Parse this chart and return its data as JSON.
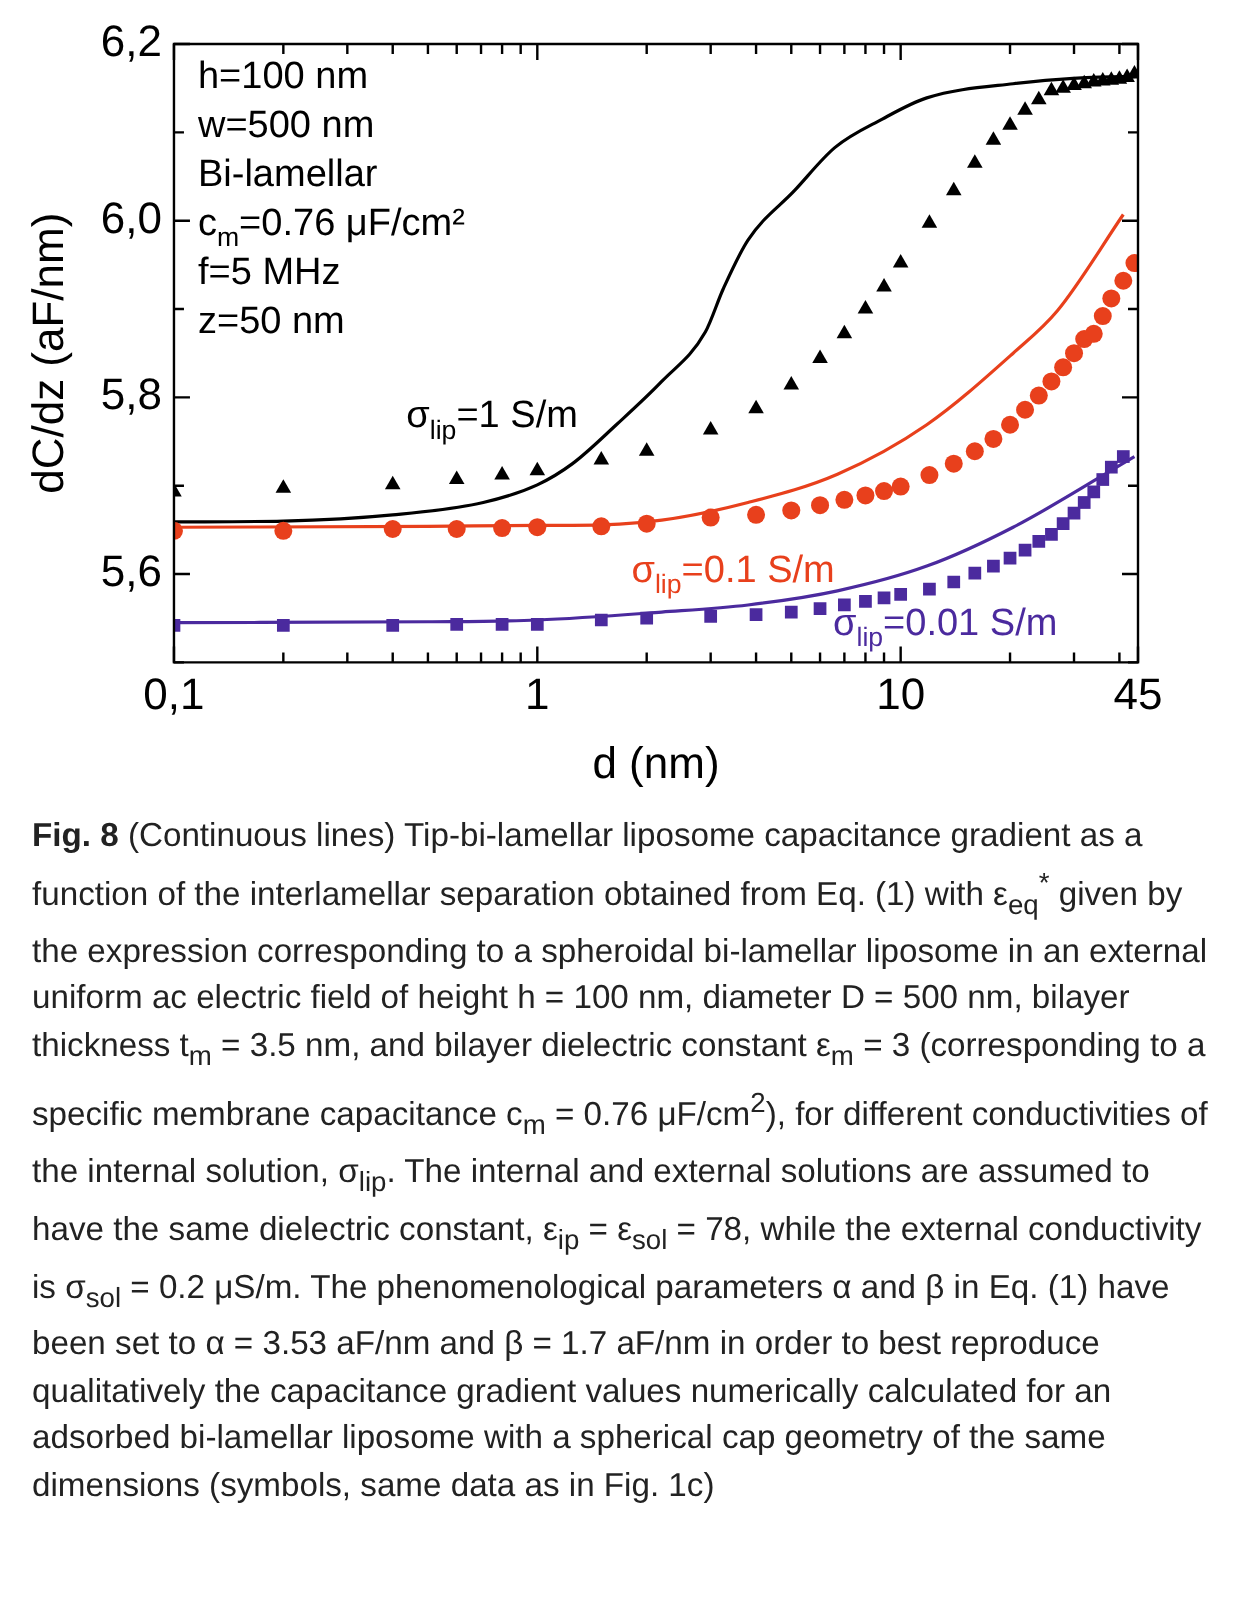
{
  "chart_data": {
    "type": "scatter",
    "xlabel": "d (nm)",
    "ylabel": "dC/dz (aF/nm)",
    "log": "x",
    "grid": false,
    "legend": false,
    "xlim": [
      0.1,
      45
    ],
    "ylim": [
      5.5,
      6.2
    ],
    "xticks": [
      {
        "value": 0.1,
        "label": "0,1"
      },
      {
        "value": 0.2,
        "label": null
      },
      {
        "value": 0.3,
        "label": null
      },
      {
        "value": 0.4,
        "label": null
      },
      {
        "value": 0.5,
        "label": null
      },
      {
        "value": 0.6,
        "label": null
      },
      {
        "value": 0.7,
        "label": null
      },
      {
        "value": 0.8,
        "label": null
      },
      {
        "value": 0.9,
        "label": null
      },
      1,
      {
        "value": 2,
        "label": null
      },
      {
        "value": 3,
        "label": null
      },
      {
        "value": 4,
        "label": null
      },
      {
        "value": 5,
        "label": null
      },
      {
        "value": 6,
        "label": null
      },
      {
        "value": 7,
        "label": null
      },
      {
        "value": 8,
        "label": null
      },
      {
        "value": 9,
        "label": null
      },
      10,
      {
        "value": 20,
        "label": null
      },
      {
        "value": 30,
        "label": null
      },
      {
        "value": 40,
        "label": null
      },
      45
    ],
    "yticks": [
      {
        "value": 5.5,
        "label": null
      },
      {
        "value": 5.6,
        "label": "5,6"
      },
      {
        "value": 5.7,
        "label": null
      },
      {
        "value": 5.8,
        "label": "5,8"
      },
      {
        "value": 5.9,
        "label": null
      },
      {
        "value": 6.0,
        "label": "6,0"
      },
      {
        "value": 6.1,
        "label": null
      },
      {
        "value": 6.2,
        "label": "6,2"
      }
    ],
    "series": [
      {
        "type": "line",
        "name": "σ$_{lip}$=1 S/m",
        "color": "#000000",
        "marker": "none",
        "x": [
          0.1,
          0.2,
          0.4,
          0.71,
          1,
          1.25,
          1.65,
          2.2,
          2.9,
          3.25,
          3.8,
          5.1,
          6.6,
          8.9,
          11.8,
          20.4,
          41,
          44
        ],
        "values": [
          5.659,
          5.66,
          5.667,
          5.681,
          5.701,
          5.725,
          5.769,
          5.818,
          5.874,
          5.923,
          5.978,
          6.034,
          6.083,
          6.115,
          6.139,
          6.155,
          6.163,
          6.163
        ]
      },
      {
        "type": "line",
        "name": "σ$_{lip}$=0.1 S/m",
        "color": "#e8401c",
        "marker": "none",
        "x": [
          0.1,
          0.5,
          1,
          1.25,
          2.2,
          3.8,
          6.7,
          11.8,
          20.4,
          27,
          41
        ],
        "values": [
          5.653,
          5.654,
          5.655,
          5.655,
          5.661,
          5.681,
          5.713,
          5.769,
          5.85,
          5.898,
          6.007
        ]
      },
      {
        "type": "line",
        "name": "σ$_{lip}$=0.01 S/m",
        "color": "#4b2a9e",
        "marker": "none",
        "x": [
          0.1,
          0.5,
          1,
          2.2,
          3.8,
          6.7,
          11.8,
          20.4,
          44
        ],
        "values": [
          5.545,
          5.546,
          5.548,
          5.557,
          5.565,
          5.581,
          5.609,
          5.653,
          5.733
        ]
      },
      {
        "type": "scatter",
        "color": "#000000",
        "marker": "triangle",
        "x": [
          0.1,
          0.2,
          0.4,
          0.6,
          0.8,
          1,
          1.5,
          2,
          3,
          4,
          5,
          6,
          7,
          8,
          9,
          10,
          12,
          14,
          16,
          18,
          20,
          22,
          24,
          26,
          28,
          30,
          32,
          34,
          36,
          38,
          40,
          42,
          44
        ],
        "values": [
          5.693,
          5.697,
          5.701,
          5.707,
          5.712,
          5.717,
          5.729,
          5.739,
          5.763,
          5.787,
          5.814,
          5.844,
          5.872,
          5.9,
          5.925,
          5.952,
          5.997,
          6.034,
          6.065,
          6.091,
          6.108,
          6.125,
          6.137,
          6.147,
          6.15,
          6.153,
          6.155,
          6.157,
          6.158,
          6.159,
          6.16,
          6.162,
          6.166
        ]
      },
      {
        "type": "scatter",
        "color": "#e8401c",
        "marker": "circle",
        "x": [
          0.1,
          0.2,
          0.4,
          0.6,
          0.8,
          1,
          1.5,
          2,
          3,
          4,
          5,
          6,
          7,
          8,
          9,
          10,
          12,
          14,
          16,
          18,
          20,
          22,
          24,
          26,
          28,
          30,
          32,
          34,
          36,
          38,
          41,
          44
        ],
        "values": [
          5.649,
          5.649,
          5.651,
          5.651,
          5.652,
          5.653,
          5.654,
          5.657,
          5.664,
          5.667,
          5.672,
          5.678,
          5.684,
          5.689,
          5.694,
          5.699,
          5.712,
          5.725,
          5.739,
          5.753,
          5.769,
          5.786,
          5.802,
          5.818,
          5.834,
          5.85,
          5.866,
          5.872,
          5.892,
          5.912,
          5.932,
          5.952
        ]
      },
      {
        "type": "scatter",
        "color": "#4b2a9e",
        "marker": "square",
        "x": [
          0.1,
          0.2,
          0.4,
          0.6,
          0.8,
          1,
          1.5,
          2,
          3,
          4,
          5,
          6,
          7,
          8,
          9,
          10,
          12,
          14,
          16,
          18,
          20,
          22,
          24,
          26,
          28,
          30,
          32,
          34,
          36,
          38,
          41
        ],
        "values": [
          5.542,
          5.542,
          5.542,
          5.543,
          5.543,
          5.543,
          5.548,
          5.55,
          5.552,
          5.554,
          5.557,
          5.561,
          5.565,
          5.569,
          5.573,
          5.577,
          5.583,
          5.591,
          5.601,
          5.609,
          5.618,
          5.627,
          5.637,
          5.645,
          5.657,
          5.669,
          5.681,
          5.693,
          5.707,
          5.721,
          5.733
        ]
      }
    ],
    "annotations": [
      "h=100 nm",
      "w=500 nm",
      "Bi-lamellar",
      "c$_{m}$=0.76 μF/cm²",
      "f=5 MHz",
      "z=50 nm",
      "Fig. 8",
      "(Continuous lines) Tip-bi-lamellar liposome capacitance gradient as a function of the interlamellar separation obtained from Eq. (1) with ε$_{eq}$$^{*}$ given by the expression corresponding to a spheroidal bi-lamellar liposome in an external uniform ac electric field of height h = 100 nm, diameter D = 500 nm, bilayer thickness t$_{m}$ = 3.5 nm, and bilayer dielectric constant ε$_{m}$ = 3 (corresponding to a specific membrane capacitance c$_{m}$ = 0.76 μF/cm$^{2}$), for different conductivities of the internal solution, σ$_{lip}$. The internal and external solutions are assumed to have the same dielectric constant, ε$_{ip}$ = ε$_{sol}$ = 78, while the external conductivity is σ$_{sol}$ = 0.2 μS/m. The phenomenological parameters α and β in Eq. (1) have been set to α = 3.53 aF/nm and β = 1.7 aF/nm in order to best reproduce qualitatively the capacitance gradient values numerically calculated for an adsorbed bi-lamellar liposome with a spherical cap geometry of the same dimensions (symbols, same data as in Fig. 1c)"
    ]
  }
}
